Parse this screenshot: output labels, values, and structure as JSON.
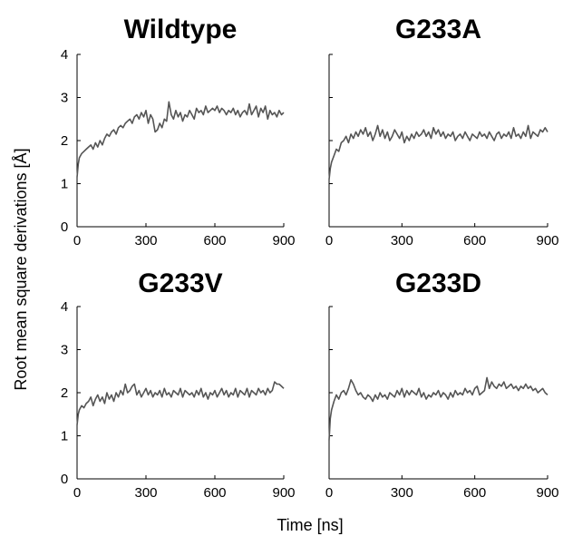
{
  "figure": {
    "ylabel": "Root mean square derivations [Å]",
    "xlabel": "Time [ns]"
  },
  "chart_data": [
    {
      "type": "line",
      "title": "Wildtype",
      "x": [
        0,
        5,
        10,
        20,
        30,
        40,
        50,
        60,
        70,
        80,
        90,
        100,
        110,
        120,
        130,
        140,
        150,
        160,
        170,
        180,
        190,
        200,
        210,
        220,
        230,
        240,
        250,
        260,
        270,
        280,
        290,
        300,
        310,
        320,
        330,
        340,
        350,
        360,
        370,
        380,
        390,
        400,
        410,
        420,
        430,
        440,
        450,
        460,
        470,
        480,
        490,
        500,
        510,
        520,
        530,
        540,
        550,
        560,
        570,
        580,
        590,
        600,
        610,
        620,
        630,
        640,
        650,
        660,
        670,
        680,
        690,
        700,
        710,
        720,
        730,
        740,
        750,
        760,
        770,
        780,
        790,
        800,
        810,
        820,
        830,
        840,
        850,
        860,
        870,
        880,
        890,
        900
      ],
      "values": [
        1.15,
        1.45,
        1.6,
        1.7,
        1.75,
        1.8,
        1.85,
        1.9,
        1.8,
        1.95,
        1.85,
        2.0,
        1.9,
        2.05,
        2.15,
        2.1,
        2.2,
        2.25,
        2.15,
        2.3,
        2.35,
        2.3,
        2.4,
        2.45,
        2.5,
        2.4,
        2.55,
        2.6,
        2.5,
        2.65,
        2.55,
        2.7,
        2.4,
        2.6,
        2.5,
        2.2,
        2.25,
        2.4,
        2.3,
        2.5,
        2.45,
        2.9,
        2.6,
        2.5,
        2.7,
        2.55,
        2.65,
        2.45,
        2.6,
        2.55,
        2.7,
        2.6,
        2.5,
        2.75,
        2.65,
        2.7,
        2.6,
        2.8,
        2.65,
        2.7,
        2.75,
        2.7,
        2.8,
        2.65,
        2.75,
        2.7,
        2.6,
        2.7,
        2.65,
        2.75,
        2.6,
        2.7,
        2.55,
        2.65,
        2.7,
        2.6,
        2.85,
        2.6,
        2.7,
        2.8,
        2.55,
        2.75,
        2.65,
        2.8,
        2.5,
        2.7,
        2.6,
        2.65,
        2.55,
        2.7,
        2.6,
        2.65
      ],
      "xlim": [
        0,
        900
      ],
      "ylim": [
        0,
        4
      ],
      "xticks": [
        0,
        300,
        600,
        900
      ],
      "yticks": [
        0,
        1,
        2,
        3,
        4
      ],
      "show_yticks": true
    },
    {
      "type": "line",
      "title": "G233A",
      "x": [
        0,
        5,
        10,
        20,
        30,
        40,
        50,
        60,
        70,
        80,
        90,
        100,
        110,
        120,
        130,
        140,
        150,
        160,
        170,
        180,
        190,
        200,
        210,
        220,
        230,
        240,
        250,
        260,
        270,
        280,
        290,
        300,
        310,
        320,
        330,
        340,
        350,
        360,
        370,
        380,
        390,
        400,
        410,
        420,
        430,
        440,
        450,
        460,
        470,
        480,
        490,
        500,
        510,
        520,
        530,
        540,
        550,
        560,
        570,
        580,
        590,
        600,
        610,
        620,
        630,
        640,
        650,
        660,
        670,
        680,
        690,
        700,
        710,
        720,
        730,
        740,
        750,
        760,
        770,
        780,
        790,
        800,
        810,
        820,
        830,
        840,
        850,
        860,
        870,
        880,
        890,
        900
      ],
      "values": [
        1.1,
        1.35,
        1.5,
        1.65,
        1.8,
        1.75,
        1.95,
        2.0,
        2.1,
        1.95,
        2.15,
        2.05,
        2.2,
        2.1,
        2.25,
        2.15,
        2.3,
        2.1,
        2.2,
        2.0,
        2.15,
        2.35,
        2.1,
        2.25,
        2.05,
        2.2,
        2.0,
        2.1,
        2.25,
        2.15,
        2.05,
        2.2,
        1.95,
        2.1,
        2.0,
        2.15,
        2.05,
        2.2,
        2.1,
        2.15,
        2.25,
        2.1,
        2.2,
        2.05,
        2.3,
        2.15,
        2.25,
        2.1,
        2.2,
        2.05,
        2.15,
        2.1,
        2.2,
        2.0,
        2.1,
        2.15,
        2.05,
        2.2,
        2.1,
        2.0,
        2.15,
        2.1,
        2.05,
        2.2,
        2.1,
        2.15,
        2.05,
        2.2,
        2.1,
        2.0,
        2.15,
        2.2,
        2.05,
        2.15,
        2.1,
        2.2,
        2.05,
        2.3,
        2.1,
        2.15,
        2.05,
        2.2,
        2.1,
        2.35,
        2.05,
        2.2,
        2.15,
        2.1,
        2.25,
        2.2,
        2.3,
        2.2
      ],
      "xlim": [
        0,
        900
      ],
      "ylim": [
        0,
        4
      ],
      "xticks": [
        0,
        300,
        600,
        900
      ],
      "yticks": [
        0,
        1,
        2,
        3,
        4
      ],
      "show_yticks": false
    },
    {
      "type": "line",
      "title": "G233V",
      "x": [
        0,
        5,
        10,
        20,
        30,
        40,
        50,
        60,
        70,
        80,
        90,
        100,
        110,
        120,
        130,
        140,
        150,
        160,
        170,
        180,
        190,
        200,
        210,
        220,
        230,
        240,
        250,
        260,
        270,
        280,
        290,
        300,
        310,
        320,
        330,
        340,
        350,
        360,
        370,
        380,
        390,
        400,
        410,
        420,
        430,
        440,
        450,
        460,
        470,
        480,
        490,
        500,
        510,
        520,
        530,
        540,
        550,
        560,
        570,
        580,
        590,
        600,
        610,
        620,
        630,
        640,
        650,
        660,
        670,
        680,
        690,
        700,
        710,
        720,
        730,
        740,
        750,
        760,
        770,
        780,
        790,
        800,
        810,
        820,
        830,
        840,
        850,
        860,
        870,
        880,
        890,
        900
      ],
      "values": [
        1.25,
        1.5,
        1.6,
        1.7,
        1.65,
        1.75,
        1.8,
        1.9,
        1.7,
        1.85,
        1.95,
        1.8,
        1.9,
        1.75,
        2.0,
        1.85,
        1.95,
        1.8,
        2.0,
        1.9,
        2.05,
        1.95,
        2.2,
        2.0,
        2.05,
        2.15,
        2.2,
        1.95,
        2.05,
        1.9,
        2.0,
        2.1,
        1.95,
        2.05,
        1.9,
        2.0,
        1.95,
        2.05,
        1.9,
        2.1,
        1.95,
        2.0,
        1.9,
        2.05,
        2.0,
        1.95,
        2.1,
        1.9,
        2.05,
        2.0,
        1.95,
        2.0,
        1.9,
        2.05,
        1.95,
        2.1,
        1.9,
        2.0,
        1.85,
        2.0,
        1.95,
        2.05,
        1.9,
        2.0,
        2.1,
        1.95,
        2.05,
        1.9,
        2.0,
        1.95,
        2.1,
        1.9,
        2.05,
        2.0,
        1.95,
        2.1,
        1.9,
        2.05,
        2.0,
        1.95,
        2.1,
        2.0,
        2.05,
        1.95,
        2.1,
        2.0,
        2.05,
        2.25,
        2.2,
        2.2,
        2.15,
        2.1
      ],
      "xlim": [
        0,
        900
      ],
      "ylim": [
        0,
        4
      ],
      "xticks": [
        0,
        300,
        600,
        900
      ],
      "yticks": [
        0,
        1,
        2,
        3,
        4
      ],
      "show_yticks": true
    },
    {
      "type": "line",
      "title": "G233D",
      "x": [
        0,
        5,
        10,
        20,
        30,
        40,
        50,
        60,
        70,
        80,
        90,
        100,
        110,
        120,
        130,
        140,
        150,
        160,
        170,
        180,
        190,
        200,
        210,
        220,
        230,
        240,
        250,
        260,
        270,
        280,
        290,
        300,
        310,
        320,
        330,
        340,
        350,
        360,
        370,
        380,
        390,
        400,
        410,
        420,
        430,
        440,
        450,
        460,
        470,
        480,
        490,
        500,
        510,
        520,
        530,
        540,
        550,
        560,
        570,
        580,
        590,
        600,
        610,
        620,
        630,
        640,
        650,
        660,
        670,
        680,
        690,
        700,
        710,
        720,
        730,
        740,
        750,
        760,
        770,
        780,
        790,
        800,
        810,
        820,
        830,
        840,
        850,
        860,
        870,
        880,
        890,
        900
      ],
      "values": [
        0.9,
        1.4,
        1.6,
        1.8,
        1.95,
        1.85,
        2.0,
        2.05,
        1.95,
        2.1,
        2.3,
        2.2,
        2.05,
        1.95,
        2.0,
        1.9,
        1.85,
        1.95,
        1.9,
        1.8,
        1.95,
        1.85,
        2.0,
        1.9,
        1.95,
        1.85,
        2.0,
        1.95,
        1.9,
        2.05,
        1.95,
        2.1,
        1.9,
        2.05,
        1.95,
        2.05,
        2.0,
        1.95,
        2.1,
        1.9,
        2.0,
        1.85,
        1.95,
        1.9,
        2.0,
        1.95,
        2.05,
        1.9,
        2.0,
        1.95,
        1.85,
        2.0,
        1.9,
        2.05,
        1.95,
        2.0,
        1.95,
        2.1,
        2.0,
        2.05,
        1.95,
        2.1,
        2.15,
        1.95,
        2.0,
        2.05,
        2.35,
        2.1,
        2.25,
        2.15,
        2.1,
        2.2,
        2.15,
        2.25,
        2.1,
        2.15,
        2.2,
        2.1,
        2.15,
        2.05,
        2.15,
        2.1,
        2.2,
        2.1,
        2.15,
        2.05,
        2.1,
        2.0,
        2.05,
        2.1,
        2.0,
        1.95
      ],
      "xlim": [
        0,
        900
      ],
      "ylim": [
        0,
        4
      ],
      "xticks": [
        0,
        300,
        600,
        900
      ],
      "yticks": [
        0,
        1,
        2,
        3,
        4
      ],
      "show_yticks": false
    }
  ],
  "colors": {
    "line": "#555555",
    "axis": "#000000",
    "background": "#ffffff"
  }
}
